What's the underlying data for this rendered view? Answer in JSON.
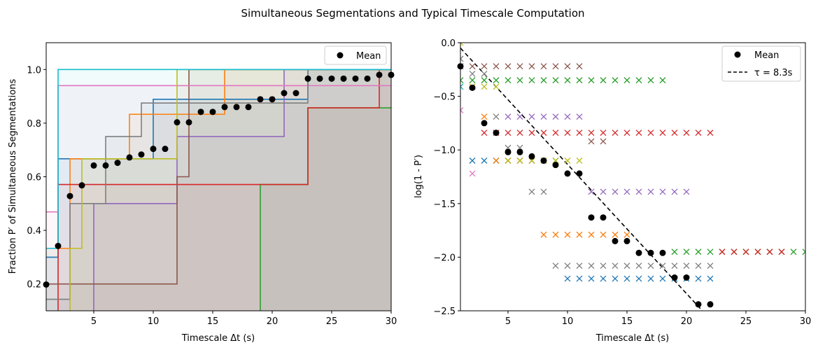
{
  "figure_title": "Simultaneous Segmentations and Typical Timescale Computation",
  "chart_data": [
    {
      "type": "line",
      "subtype": "step-filled",
      "xlabel": "Timescale Δt (s)",
      "ylabel": "Fraction P′ of Simultaneous Segmentations",
      "xlim": [
        1,
        30
      ],
      "ylim": [
        0.1,
        1.1
      ],
      "xticks": [
        5,
        10,
        15,
        20,
        25,
        30
      ],
      "yticks": [
        0.2,
        0.4,
        0.6,
        0.8,
        1.0
      ],
      "xtick_labels": [
        "5",
        "10",
        "15",
        "20",
        "25",
        "30"
      ],
      "ytick_labels": [
        "0.2",
        "0.4",
        "0.6",
        "0.8",
        "1.0"
      ],
      "legend": {
        "location": "top-right",
        "entries": [
          "Mean"
        ]
      },
      "grid": false,
      "series": [
        {
          "color": "#1f77b4",
          "steps": [
            [
              1,
              0.3
            ],
            [
              2,
              0.667
            ],
            [
              9,
              0.667
            ],
            [
              10,
              0.889
            ],
            [
              22,
              0.889
            ],
            [
              23,
              1.0
            ],
            [
              30,
              1.0
            ]
          ]
        },
        {
          "color": "#ff7f0e",
          "steps": [
            [
              1,
              0.333
            ],
            [
              3,
              0.667
            ],
            [
              8,
              0.833
            ],
            [
              15,
              0.833
            ],
            [
              16,
              1.0
            ],
            [
              30,
              1.0
            ]
          ]
        },
        {
          "color": "#2ca02c",
          "steps": [
            [
              1,
              0.0
            ],
            [
              19,
              0.571
            ],
            [
              23,
              0.857
            ],
            [
              30,
              0.857
            ]
          ]
        },
        {
          "color": "#d62728",
          "steps": [
            [
              1,
              0.0
            ],
            [
              2,
              0.571
            ],
            [
              22,
              0.571
            ],
            [
              23,
              0.857
            ],
            [
              28,
              0.857
            ],
            [
              29,
              1.0
            ],
            [
              30,
              1.0
            ]
          ]
        },
        {
          "color": "#9467bd",
          "steps": [
            [
              1,
              0.0
            ],
            [
              5,
              0.5
            ],
            [
              11,
              0.5
            ],
            [
              12,
              0.75
            ],
            [
              20,
              0.75
            ],
            [
              21,
              1.0
            ],
            [
              30,
              1.0
            ]
          ]
        },
        {
          "color": "#8c564b",
          "steps": [
            [
              1,
              0.2
            ],
            [
              11,
              0.2
            ],
            [
              12,
              0.6
            ],
            [
              13,
              1.0
            ],
            [
              30,
              1.0
            ]
          ]
        },
        {
          "color": "#e377c2",
          "steps": [
            [
              1,
              0.469
            ],
            [
              2,
              0.94
            ],
            [
              30,
              0.94
            ]
          ]
        },
        {
          "color": "#7f7f7f",
          "steps": [
            [
              1,
              0.143
            ],
            [
              3,
              0.5
            ],
            [
              6,
              0.75
            ],
            [
              9,
              0.875
            ],
            [
              22,
              0.875
            ],
            [
              23,
              1.0
            ],
            [
              30,
              1.0
            ]
          ]
        },
        {
          "color": "#bcbd22",
          "steps": [
            [
              1,
              0.0
            ],
            [
              3,
              0.333
            ],
            [
              4,
              0.667
            ],
            [
              11,
              0.667
            ],
            [
              12,
              1.0
            ],
            [
              30,
              1.0
            ]
          ]
        },
        {
          "color": "#17becf",
          "steps": [
            [
              1,
              0.333
            ],
            [
              2,
              1.0
            ],
            [
              30,
              1.0
            ]
          ]
        }
      ],
      "mean": {
        "name": "Mean",
        "x": [
          1,
          2,
          3,
          4,
          5,
          6,
          7,
          8,
          9,
          10,
          11,
          12,
          13,
          14,
          15,
          16,
          17,
          18,
          19,
          20,
          21,
          22,
          23,
          24,
          25,
          26,
          27,
          28,
          29,
          30
        ],
        "y": [
          0.198,
          0.342,
          0.528,
          0.568,
          0.642,
          0.642,
          0.652,
          0.672,
          0.683,
          0.704,
          0.704,
          0.803,
          0.803,
          0.842,
          0.842,
          0.86,
          0.86,
          0.86,
          0.889,
          0.889,
          0.912,
          0.912,
          0.966,
          0.966,
          0.966,
          0.966,
          0.966,
          0.966,
          0.98,
          0.98
        ]
      }
    },
    {
      "type": "scatter",
      "xlabel": "Timescale Δt (s)",
      "ylabel": "log(1 - P′)",
      "xlim": [
        1,
        30
      ],
      "ylim": [
        -2.5,
        0.0
      ],
      "xticks": [
        5,
        10,
        15,
        20,
        25,
        30
      ],
      "yticks": [
        -2.5,
        -2.0,
        -1.5,
        -1.0,
        -0.5,
        0.0
      ],
      "xtick_labels": [
        "5",
        "10",
        "15",
        "20",
        "25",
        "30"
      ],
      "ytick_labels": [
        "−2.5",
        "−2.0",
        "−1.5",
        "−1.0",
        "−0.5",
        "0.0"
      ],
      "legend": {
        "location": "top-right",
        "entries": [
          "Mean",
          "τ = 8.3s"
        ]
      },
      "grid": false,
      "fit_line": {
        "name": "τ = 8.3s",
        "tau": 8.3,
        "x": [
          1,
          22
        ],
        "y": [
          -0.05,
          -2.58
        ]
      },
      "series": [
        {
          "color": "#1f77b4",
          "x": [
            2,
            3,
            4,
            5,
            6,
            7,
            8,
            9,
            10,
            11,
            12,
            13,
            14,
            15,
            16,
            17,
            18,
            19,
            20,
            21,
            22
          ],
          "y": [
            -1.1,
            -1.1,
            -1.1,
            -1.1,
            -1.1,
            -1.1,
            -1.1,
            -1.1,
            -2.2,
            -2.2,
            -2.2,
            -2.2,
            -2.2,
            -2.2,
            -2.2,
            -2.2,
            -2.2,
            -2.2,
            -2.2,
            -2.2,
            -2.2
          ]
        },
        {
          "color": "#ff7f0e",
          "x": [
            1,
            2,
            3,
            4,
            5,
            6,
            7,
            8,
            9,
            10,
            11,
            12,
            13,
            14,
            15
          ],
          "y": [
            -0.41,
            -0.41,
            -0.69,
            -1.1,
            -1.1,
            -1.1,
            -1.1,
            -1.79,
            -1.79,
            -1.79,
            -1.79,
            -1.79,
            -1.79,
            -1.79,
            -1.79
          ]
        },
        {
          "color": "#2ca02c",
          "x": [
            1,
            2,
            3,
            4,
            5,
            6,
            7,
            8,
            9,
            10,
            11,
            12,
            13,
            14,
            15,
            16,
            17,
            18,
            19,
            20,
            21,
            22,
            23,
            24,
            25,
            26,
            27,
            28,
            29,
            30
          ],
          "y": [
            -0.35,
            -0.35,
            -0.35,
            -0.35,
            -0.35,
            -0.35,
            -0.35,
            -0.35,
            -0.35,
            -0.35,
            -0.35,
            -0.35,
            -0.35,
            -0.35,
            -0.35,
            -0.35,
            -0.35,
            -0.35,
            -1.95,
            -1.95,
            -1.95,
            -1.95,
            -1.95,
            -1.95,
            -1.95,
            -1.95,
            -1.95,
            -1.95,
            -1.95,
            -1.95
          ]
        },
        {
          "color": "#d62728",
          "x": [
            3,
            4,
            5,
            6,
            7,
            8,
            9,
            10,
            11,
            12,
            13,
            14,
            15,
            16,
            17,
            18,
            19,
            20,
            21,
            22,
            23,
            24,
            25,
            26,
            27,
            28
          ],
          "y": [
            -0.84,
            -0.84,
            -0.84,
            -0.84,
            -0.84,
            -0.84,
            -0.84,
            -0.84,
            -0.84,
            -0.84,
            -0.84,
            -0.84,
            -0.84,
            -0.84,
            -0.84,
            -0.84,
            -0.84,
            -0.84,
            -0.84,
            -0.84,
            -1.95,
            -1.95,
            -1.95,
            -1.95,
            -1.95,
            -1.95
          ]
        },
        {
          "color": "#9467bd",
          "x": [
            5,
            6,
            7,
            8,
            9,
            10,
            11,
            12,
            13,
            14,
            15,
            16,
            17,
            18,
            19,
            20
          ],
          "y": [
            -0.69,
            -0.69,
            -0.69,
            -0.69,
            -0.69,
            -0.69,
            -0.69,
            -1.39,
            -1.39,
            -1.39,
            -1.39,
            -1.39,
            -1.39,
            -1.39,
            -1.39,
            -1.39
          ]
        },
        {
          "color": "#8c564b",
          "x": [
            1,
            2,
            3,
            4,
            5,
            6,
            7,
            8,
            9,
            10,
            11,
            12,
            13
          ],
          "y": [
            -0.22,
            -0.22,
            -0.22,
            -0.22,
            -0.22,
            -0.22,
            -0.22,
            -0.22,
            -0.22,
            -0.22,
            -0.22,
            -0.92,
            -0.92
          ]
        },
        {
          "color": "#e377c2",
          "x": [
            1,
            2
          ],
          "y": [
            -0.63,
            -1.22
          ]
        },
        {
          "color": "#7f7f7f",
          "x": [
            1,
            2,
            3,
            4,
            5,
            6,
            7,
            8,
            9,
            10,
            11,
            12,
            13,
            14,
            15,
            16,
            17,
            18,
            19,
            20,
            21,
            22
          ],
          "y": [
            -0.15,
            -0.29,
            -0.29,
            -0.69,
            -0.98,
            -0.98,
            -1.39,
            -1.39,
            -2.08,
            -2.08,
            -2.08,
            -2.08,
            -2.08,
            -2.08,
            -2.08,
            -2.08,
            -2.08,
            -2.08,
            -2.08,
            -2.08,
            -2.08,
            -2.08
          ]
        },
        {
          "color": "#bcbd22",
          "x": [
            1,
            2,
            3,
            4,
            5,
            6,
            7,
            8,
            9,
            10,
            11
          ],
          "y": [
            0.0,
            -0.41,
            -0.41,
            -0.41,
            -1.1,
            -1.1,
            -1.1,
            -1.1,
            -1.1,
            -1.1,
            -1.1
          ]
        },
        {
          "color": "#17becf",
          "x": [
            1
          ],
          "y": [
            -0.41
          ]
        }
      ],
      "mean": {
        "name": "Mean",
        "x": [
          1,
          2,
          3,
          4,
          5,
          6,
          7,
          8,
          9,
          10,
          11,
          12,
          13,
          14,
          15,
          16,
          17,
          18,
          19,
          20,
          21,
          22
        ],
        "y": [
          -0.22,
          -0.42,
          -0.75,
          -0.84,
          -1.02,
          -1.02,
          -1.06,
          -1.1,
          -1.14,
          -1.22,
          -1.22,
          -1.63,
          -1.63,
          -1.85,
          -1.85,
          -1.96,
          -1.96,
          -1.96,
          -2.19,
          -2.19,
          -2.44,
          -2.44
        ]
      }
    }
  ]
}
